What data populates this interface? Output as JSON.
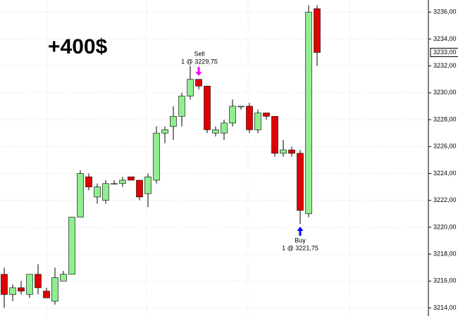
{
  "chart_data": {
    "type": "candlestick",
    "headline": "+400$",
    "sell_label": "Sell",
    "sell_detail": "1 @ 3229,75",
    "buy_label": "Buy",
    "buy_detail": "1 @ 3221,75",
    "up_color": "#90ee90",
    "down_color": "#e00000",
    "open": [
      3216.5,
      3215,
      3215.5,
      3215,
      3216.5,
      3215.25,
      3214.5,
      3216,
      3216.5,
      3220.75,
      3223.75,
      3222.25,
      3222,
      3223.25,
      3223.25,
      3223.75,
      3223.5,
      3222.5,
      3223.5,
      3227,
      3227.5,
      3228.25,
      3229.75,
      3231,
      3230.5,
      3227,
      3227,
      3227.75,
      3229,
      3229,
      3227.25,
      3228.5,
      3228.25,
      3225.5,
      3225.75,
      3225.5,
      3221,
      3236.25
    ],
    "high": [
      3217,
      3215.75,
      3216,
      3216.5,
      3217.25,
      3215.5,
      3217,
      3216.75,
      3220.75,
      3224.25,
      3224,
      3223.25,
      3223.5,
      3223.5,
      3223.75,
      3223.75,
      3223.5,
      3224,
      3227.5,
      3227.5,
      3229,
      3230,
      3232,
      3231,
      3230.5,
      3227.5,
      3228,
      3229.5,
      3229,
      3229.25,
      3228.75,
      3228.5,
      3228.25,
      3226.5,
      3226,
      3225.75,
      3236.5,
      3236.5
    ],
    "low": [
      3214,
      3214.5,
      3215,
      3214.75,
      3215,
      3214.75,
      3214.25,
      3216,
      3216.5,
      3220.75,
      3222.75,
      3221.75,
      3221.75,
      3223.25,
      3223,
      3223.5,
      3222,
      3221.5,
      3223.25,
      3226.25,
      3226.5,
      3227.5,
      3229.5,
      3230.25,
      3227,
      3226.75,
      3226.5,
      3227.5,
      3228.75,
      3227,
      3227,
      3228,
      3225.25,
      3225.25,
      3225.25,
      3220.25,
      3220.75,
      3232
    ],
    "close": [
      3215,
      3215.5,
      3215.25,
      3216.5,
      3215.5,
      3214.75,
      3216.25,
      3216.5,
      3220.75,
      3224,
      3223,
      3223,
      3223.25,
      3223.25,
      3223.5,
      3223.5,
      3222.25,
      3223.75,
      3227,
      3227.25,
      3228.25,
      3229.75,
      3231,
      3230.5,
      3227.25,
      3227.25,
      3227.75,
      3229,
      3229,
      3227.25,
      3228.5,
      3228.25,
      3225.5,
      3225.75,
      3225.5,
      3221.25,
      3236,
      3233
    ],
    "ylim": [
      3213.4,
      3236.9
    ],
    "yticks": [
      {
        "value": 3214,
        "label": "3214,00"
      },
      {
        "value": 3216,
        "label": "3216,00"
      },
      {
        "value": 3218,
        "label": "3218,00"
      },
      {
        "value": 3220,
        "label": "3220,00"
      },
      {
        "value": 3222,
        "label": "3222,00"
      },
      {
        "value": 3224,
        "label": "3224,00"
      },
      {
        "value": 3226,
        "label": "3226,00"
      },
      {
        "value": 3228,
        "label": "3228,00"
      },
      {
        "value": 3230,
        "label": "3230,00"
      },
      {
        "value": 3232,
        "label": "3232,00"
      },
      {
        "value": 3234,
        "label": "3234,00"
      },
      {
        "value": 3236,
        "label": "3236,00"
      }
    ],
    "last_price": {
      "value": 3233,
      "label": "3233,00"
    },
    "grid": true
  }
}
